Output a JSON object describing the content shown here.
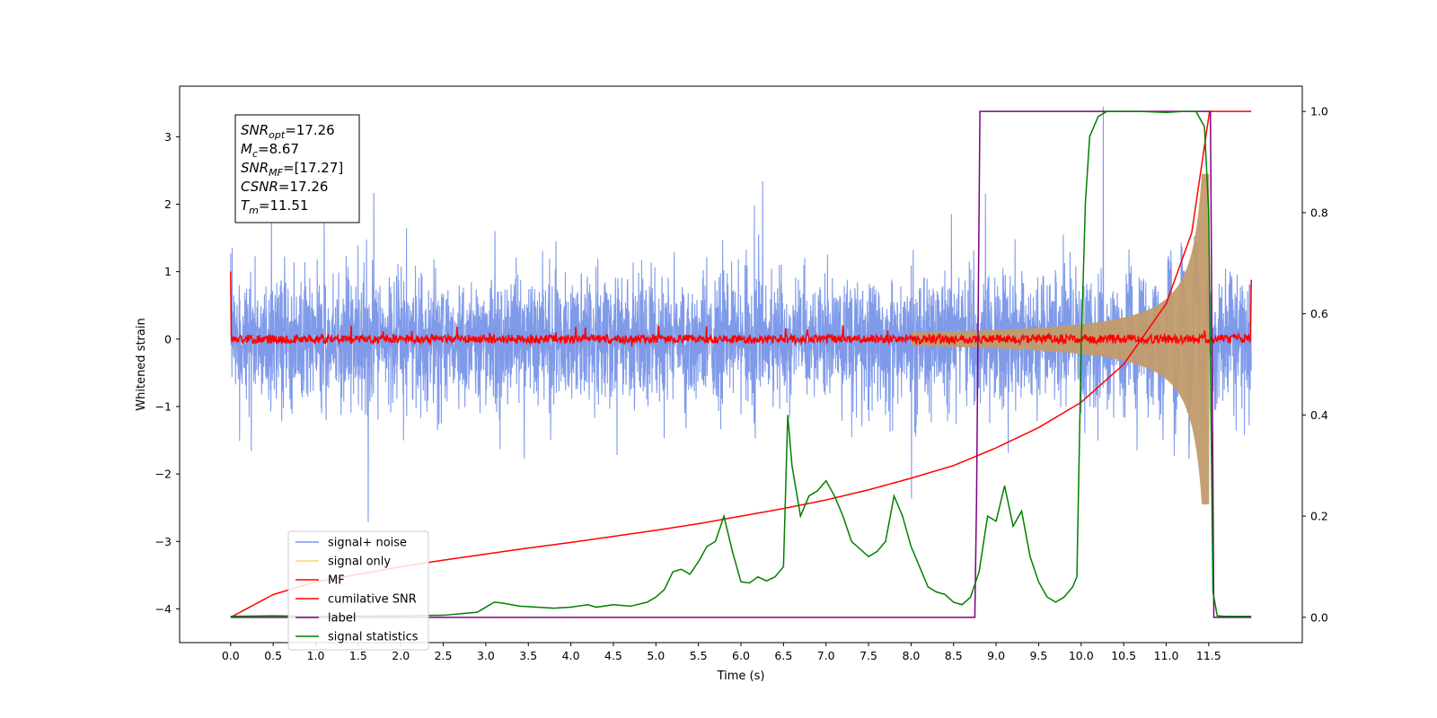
{
  "chart_data": {
    "type": "line",
    "xlabel": "Time (s)",
    "ylabel_left": "Whitened strain",
    "x_ticks": [
      "0.0",
      "0.5",
      "1.0",
      "1.5",
      "2.0",
      "2.5",
      "3.0",
      "3.5",
      "4.0",
      "4.5",
      "5.0",
      "5.5",
      "6.0",
      "6.5",
      "7.0",
      "7.5",
      "8.0",
      "8.5",
      "9.0",
      "9.5",
      "10.0",
      "10.5",
      "11.0",
      "11.5"
    ],
    "y_left_ticks": [
      "3",
      "2",
      "1",
      "0",
      "−1",
      "−2",
      "−3",
      "−4"
    ],
    "y_right_ticks": [
      "1.0",
      "0.8",
      "0.6",
      "0.4",
      "0.2",
      "0.0"
    ],
    "xlim": [
      -0.6,
      12.6
    ],
    "ylim_left": [
      -4.5,
      3.75
    ],
    "ylim_right": [
      -0.05,
      1.05
    ],
    "grid": false,
    "legend_position": "lower-left",
    "annotation": [
      {
        "base": "SNR",
        "sub": "opt",
        "value": "=17.26"
      },
      {
        "base": "M",
        "sub": "c",
        "value": "=8.67"
      },
      {
        "base": "SNR",
        "sub": "MF",
        "value": "=[17.27]"
      },
      {
        "base": "CSNR",
        "sub": "",
        "value": "=17.26"
      },
      {
        "base": "T",
        "sub": "m",
        "value": "=11.51"
      }
    ],
    "series": [
      {
        "name": "signal+ noise",
        "color": "#7895e8",
        "axis": "left",
        "kind": "noise",
        "sigma": 0.6,
        "range": [
          0.0,
          12.0
        ]
      },
      {
        "name": "signal only",
        "color": "#ffd37a",
        "axis": "left",
        "kind": "chirp",
        "merger": 11.51
      },
      {
        "name": "MF",
        "color": "#ff0000",
        "axis": "left",
        "kind": "mf"
      },
      {
        "name": "cumilative SNR",
        "color": "#ff0000",
        "axis": "right",
        "x": [
          0.0,
          0.5,
          1.0,
          1.5,
          2.0,
          2.5,
          3.0,
          3.5,
          4.0,
          4.5,
          5.0,
          5.5,
          6.0,
          6.5,
          7.0,
          7.5,
          8.0,
          8.5,
          9.0,
          9.5,
          10.0,
          10.5,
          11.0,
          11.3,
          11.51,
          12.0
        ],
        "y": [
          0.0,
          0.045,
          0.07,
          0.085,
          0.1,
          0.113,
          0.125,
          0.137,
          0.148,
          0.16,
          0.172,
          0.185,
          0.2,
          0.215,
          0.232,
          0.252,
          0.275,
          0.3,
          0.335,
          0.375,
          0.425,
          0.5,
          0.62,
          0.76,
          1.0,
          1.0
        ]
      },
      {
        "name": "label",
        "color": "#800080",
        "axis": "right",
        "x": [
          0.0,
          8.75,
          8.77,
          8.81,
          11.52,
          11.56,
          12.0
        ],
        "y": [
          0.0,
          0.0,
          0.23,
          1.0,
          1.0,
          0.0,
          0.0
        ]
      },
      {
        "name": "signal statistics",
        "color": "#008000",
        "axis": "right",
        "x": [
          0.0,
          0.5,
          1.0,
          2.0,
          2.5,
          2.9,
          3.0,
          3.1,
          3.2,
          3.3,
          3.4,
          3.6,
          3.8,
          4.0,
          4.2,
          4.3,
          4.5,
          4.7,
          4.9,
          5.0,
          5.1,
          5.2,
          5.3,
          5.4,
          5.5,
          5.6,
          5.7,
          5.8,
          5.9,
          6.0,
          6.1,
          6.2,
          6.3,
          6.4,
          6.5,
          6.55,
          6.6,
          6.7,
          6.8,
          6.9,
          7.0,
          7.1,
          7.2,
          7.3,
          7.4,
          7.5,
          7.6,
          7.7,
          7.8,
          7.9,
          8.0,
          8.1,
          8.2,
          8.3,
          8.4,
          8.5,
          8.6,
          8.7,
          8.8,
          8.9,
          9.0,
          9.1,
          9.2,
          9.3,
          9.4,
          9.5,
          9.6,
          9.7,
          9.8,
          9.9,
          9.95,
          10.0,
          10.05,
          10.1,
          10.2,
          10.3,
          10.5,
          10.7,
          11.0,
          11.2,
          11.35,
          11.45,
          11.5,
          11.55,
          11.6,
          11.7,
          12.0
        ],
        "y": [
          0.002,
          0.003,
          0.002,
          0.003,
          0.004,
          0.01,
          0.02,
          0.03,
          0.028,
          0.025,
          0.022,
          0.02,
          0.018,
          0.02,
          0.025,
          0.02,
          0.025,
          0.022,
          0.03,
          0.04,
          0.055,
          0.09,
          0.095,
          0.085,
          0.11,
          0.14,
          0.15,
          0.2,
          0.13,
          0.07,
          0.068,
          0.08,
          0.072,
          0.08,
          0.1,
          0.4,
          0.3,
          0.2,
          0.24,
          0.25,
          0.27,
          0.24,
          0.2,
          0.15,
          0.135,
          0.12,
          0.13,
          0.15,
          0.24,
          0.2,
          0.14,
          0.1,
          0.06,
          0.05,
          0.045,
          0.03,
          0.025,
          0.04,
          0.09,
          0.2,
          0.19,
          0.26,
          0.18,
          0.21,
          0.12,
          0.07,
          0.04,
          0.03,
          0.04,
          0.06,
          0.08,
          0.53,
          0.82,
          0.95,
          0.99,
          1.0,
          1.0,
          1.0,
          0.998,
          1.0,
          1.0,
          0.97,
          0.8,
          0.05,
          0.003,
          0.002,
          0.002
        ]
      }
    ]
  }
}
